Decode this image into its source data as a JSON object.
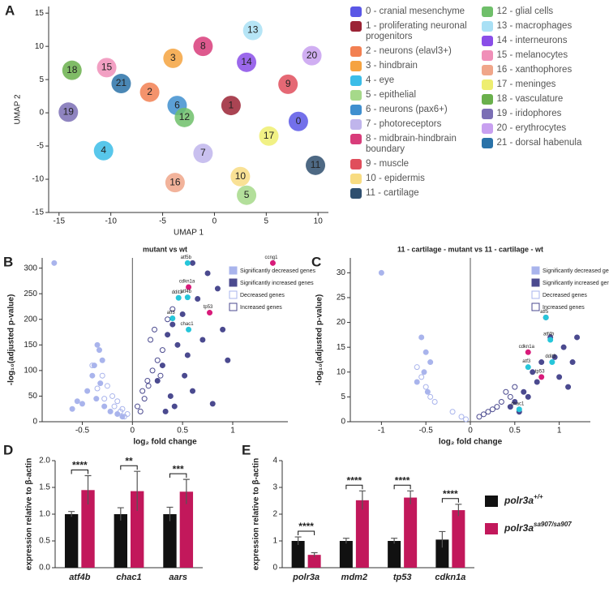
{
  "chart_data": [
    {
      "type": "scatter",
      "panel": "A",
      "xlabel": "UMAP 1",
      "ylabel": "UMAP 2",
      "xlim": [
        -16,
        11
      ],
      "ylim": [
        -15,
        16
      ],
      "xticks": [
        -15,
        -10,
        -5,
        0,
        5,
        10
      ],
      "yticks": [
        -15,
        -10,
        -5,
        0,
        5,
        10,
        15
      ],
      "clusters": [
        {
          "id": "0",
          "name": "0 - cranial mesenchyme",
          "color": "#5a57e6",
          "x": 8.1,
          "y": -1.3
        },
        {
          "id": "1",
          "name": "1 - proliferating neuronal progenitors",
          "color": "#9b2335",
          "x": 1.6,
          "y": 1.1
        },
        {
          "id": "2",
          "name": "2 - neurons (elavl3+)",
          "color": "#f28052",
          "x": -6.25,
          "y": 3.1
        },
        {
          "id": "3",
          "name": "3 - hindbrain",
          "color": "#f5a340",
          "x": -4.0,
          "y": 8.2
        },
        {
          "id": "4",
          "name": "4 - eye",
          "color": "#3bbde8",
          "x": -10.7,
          "y": -5.7
        },
        {
          "id": "5",
          "name": "5 - epithelial",
          "color": "#a6d98a",
          "x": 3.1,
          "y": -12.4
        },
        {
          "id": "6",
          "name": "6 - neurons (pax6+)",
          "color": "#3f8fcf",
          "x": -3.6,
          "y": 1.1
        },
        {
          "id": "7",
          "name": "7 - photoreceptors",
          "color": "#c0b5ec",
          "x": -1.1,
          "y": -6.1
        },
        {
          "id": "8",
          "name": "8 - midbrain-hindbrain boundary",
          "color": "#d83c7a",
          "x": -1.1,
          "y": 10
        },
        {
          "id": "9",
          "name": "9 - muscle",
          "color": "#e04e5c",
          "x": 7.1,
          "y": 4.3
        },
        {
          "id": "10",
          "name": "10 - epidermis",
          "color": "#f8dc82",
          "x": 2.5,
          "y": -9.6
        },
        {
          "id": "11",
          "name": "11 - cartilage",
          "color": "#2f4f6f",
          "x": 9.75,
          "y": -7.9
        },
        {
          "id": "12",
          "name": "12 - glial cells",
          "color": "#6fbf6a",
          "x": -2.9,
          "y": -0.7
        },
        {
          "id": "13",
          "name": "13 - macrophages",
          "color": "#a9e0f5",
          "x": 3.7,
          "y": 12.4
        },
        {
          "id": "14",
          "name": "14 - interneurons",
          "color": "#8a4ee8",
          "x": 3.1,
          "y": 7.6
        },
        {
          "id": "15",
          "name": "15 - melanocytes",
          "color": "#f08fb8",
          "x": -10.4,
          "y": 6.8
        },
        {
          "id": "16",
          "name": "16 - xanthophores",
          "color": "#f0a68a",
          "x": -3.8,
          "y": -10.5
        },
        {
          "id": "17",
          "name": "17 - meninges",
          "color": "#eeee70",
          "x": 5.25,
          "y": -3.5
        },
        {
          "id": "18",
          "name": "18 - vasculature",
          "color": "#6ab04c",
          "x": -13.75,
          "y": 6.4
        },
        {
          "id": "19",
          "name": "19 - iridophores",
          "color": "#7b6fb5",
          "x": -14.1,
          "y": 0.1
        },
        {
          "id": "20",
          "name": "20 - erythrocytes",
          "color": "#c8a0f0",
          "x": 9.4,
          "y": 8.6
        },
        {
          "id": "21",
          "name": "21 - dorsal habenula",
          "color": "#2a72a8",
          "x": -9,
          "y": 4.4
        }
      ]
    },
    {
      "type": "volcano",
      "panel": "B",
      "title": "mutant vs wt",
      "xlabel": "log₂ fold change",
      "ylabel": "-log₁₀(adjusted p-value)",
      "xlim": [
        -0.9,
        1.55
      ],
      "ylim": [
        0,
        320
      ],
      "xticks": [
        -0.5,
        0,
        0.5,
        1
      ],
      "yticks": [
        0,
        50,
        100,
        150,
        200,
        250,
        300
      ],
      "series": [
        {
          "name": "Significantly decreased genes",
          "color": "#a9b4ec",
          "marker": "filled",
          "x": [
            -0.78,
            -0.35,
            -0.33,
            -0.3,
            -0.38,
            -0.55,
            -0.5,
            -0.45,
            -0.28,
            -0.22,
            -0.4,
            -0.6,
            -0.15,
            -0.1,
            -0.32,
            -0.36
          ],
          "y": [
            310,
            150,
            140,
            120,
            110,
            40,
            35,
            60,
            30,
            20,
            90,
            25,
            15,
            10,
            75,
            45
          ]
        },
        {
          "name": "Significantly increased genes",
          "color": "#4b4a8f",
          "marker": "filled",
          "x": [
            0.6,
            0.75,
            0.85,
            0.65,
            0.5,
            0.4,
            0.35,
            0.45,
            0.55,
            0.3,
            0.25,
            0.7,
            0.9,
            0.95,
            0.6,
            0.42,
            0.38,
            0.52,
            0.8,
            0.33
          ],
          "y": [
            310,
            290,
            260,
            240,
            210,
            190,
            170,
            150,
            130,
            110,
            80,
            160,
            180,
            120,
            60,
            30,
            50,
            90,
            35,
            20
          ]
        },
        {
          "name": "Decreased genes",
          "color": "#a9b4ec",
          "marker": "open",
          "x": [
            -0.3,
            -0.25,
            -0.2,
            -0.15,
            -0.1,
            -0.05,
            -0.4,
            -0.35,
            -0.18,
            -0.08,
            -0.28,
            -0.12
          ],
          "y": [
            90,
            70,
            50,
            40,
            25,
            15,
            110,
            65,
            30,
            10,
            45,
            20
          ]
        },
        {
          "name": "Increased genes",
          "color": "#4b4a8f",
          "marker": "open",
          "x": [
            0.1,
            0.15,
            0.2,
            0.25,
            0.3,
            0.05,
            0.12,
            0.18,
            0.22,
            0.28,
            0.35,
            0.4,
            0.08,
            0.16
          ],
          "y": [
            60,
            80,
            100,
            120,
            140,
            30,
            45,
            160,
            180,
            90,
            200,
            220,
            20,
            70
          ]
        }
      ],
      "genes": [
        {
          "label": "ccng1",
          "color": "#d81b7a",
          "x": 1.4,
          "y": 310
        },
        {
          "label": "atf5b",
          "color": "#26c6da",
          "x": 0.55,
          "y": 310
        },
        {
          "label": "cdkn1a",
          "color": "#d81b7a",
          "x": 0.56,
          "y": 263
        },
        {
          "label": "ddit3",
          "color": "#26c6da",
          "x": 0.46,
          "y": 242
        },
        {
          "label": "atf4b",
          "color": "#26c6da",
          "x": 0.55,
          "y": 243
        },
        {
          "label": "tp53",
          "color": "#d81b7a",
          "x": 0.77,
          "y": 213
        },
        {
          "label": "atf3",
          "color": "#26c6da",
          "x": 0.4,
          "y": 202
        },
        {
          "label": "chac1",
          "color": "#26c6da",
          "x": 0.56,
          "y": 180
        }
      ]
    },
    {
      "type": "volcano",
      "panel": "C",
      "title": "11 - cartilage - mutant vs 11 - cartilage - wt",
      "xlabel": "log₂ fold change",
      "ylabel": "-log₁₀(adjusted p-value)",
      "xlim": [
        -1.35,
        1.35
      ],
      "ylim": [
        0,
        33
      ],
      "xticks": [
        -1,
        -0.5,
        0,
        0.5,
        1
      ],
      "yticks": [
        0,
        5,
        10,
        15,
        20,
        25,
        30
      ],
      "series": [
        {
          "name": "Significantly decreased genes",
          "color": "#a9b4ec",
          "marker": "filled",
          "x": [
            -1,
            -0.55,
            -0.5,
            -0.45,
            -0.6,
            -0.52,
            -0.48
          ],
          "y": [
            30,
            17,
            14,
            12,
            8,
            10,
            6
          ]
        },
        {
          "name": "Significantly increased genes",
          "color": "#4b4a8f",
          "marker": "filled",
          "x": [
            0.85,
            0.9,
            0.95,
            1.05,
            1.15,
            1.2,
            0.75,
            0.7,
            0.6,
            0.5,
            0.45,
            0.8,
            1.0,
            1.1,
            0.65,
            0.55
          ],
          "y": [
            21,
            17,
            13,
            15,
            12,
            17,
            8,
            10,
            6,
            4,
            3,
            12,
            9,
            7,
            5,
            2
          ]
        },
        {
          "name": "Decreased genes",
          "color": "#a9b4ec",
          "marker": "open",
          "x": [
            -0.6,
            -0.55,
            -0.5,
            -0.45,
            -0.4,
            -0.2,
            -0.1,
            -0.05
          ],
          "y": [
            11,
            9,
            7,
            5,
            4,
            2,
            1,
            0.5
          ]
        },
        {
          "name": "Increased genes",
          "color": "#4b4a8f",
          "marker": "open",
          "x": [
            0.1,
            0.2,
            0.3,
            0.35,
            0.4,
            0.5,
            0.25,
            0.15,
            0.45
          ],
          "y": [
            1,
            2,
            3,
            4,
            6,
            7,
            2.5,
            1.5,
            5
          ]
        }
      ],
      "genes": [
        {
          "label": "atf5",
          "color": "#26c6da",
          "x": 0.85,
          "y": 21
        },
        {
          "label": "atf4b",
          "color": "#26c6da",
          "x": 0.9,
          "y": 16.5
        },
        {
          "label": "cdkn1a",
          "color": "#d81b7a",
          "x": 0.65,
          "y": 14
        },
        {
          "label": "ddit3",
          "color": "#26c6da",
          "x": 0.92,
          "y": 12
        },
        {
          "label": "atf3",
          "color": "#26c6da",
          "x": 0.65,
          "y": 11
        },
        {
          "label": "tp53",
          "color": "#d81b7a",
          "x": 0.8,
          "y": 9
        },
        {
          "label": "chac1",
          "color": "#26c6da",
          "x": 0.55,
          "y": 2.5
        }
      ]
    },
    {
      "type": "bar",
      "panel": "D",
      "ylabel": "expression relative to β-actin",
      "categories": [
        "atf4b",
        "chac1",
        "aars"
      ],
      "ylim": [
        0,
        2
      ],
      "yticks": [
        {
          "value": 0,
          "label": "0.0"
        },
        {
          "value": 0.5,
          "label": "0.5"
        },
        {
          "value": 1,
          "label": "1.0"
        },
        {
          "value": 1.5,
          "label": "1.5"
        },
        {
          "value": 2,
          "label": "2.0"
        }
      ],
      "series": [
        {
          "color": "#111111",
          "values": [
            1.0,
            1.0,
            1.0
          ],
          "errors": [
            0.05,
            0.12,
            0.13
          ]
        },
        {
          "color": "#c2185b",
          "values": [
            1.45,
            1.43,
            1.42
          ],
          "errors": [
            0.27,
            0.37,
            0.23
          ]
        }
      ],
      "significance": [
        "****",
        "**",
        "***"
      ]
    },
    {
      "type": "bar",
      "panel": "E",
      "ylabel": "expression relative to β-actin",
      "categories": [
        "polr3a",
        "mdm2",
        "tp53",
        "cdkn1a"
      ],
      "ylim": [
        0,
        4
      ],
      "yticks": [
        0,
        1,
        2,
        3,
        4
      ],
      "series": [
        {
          "name": "polr3a",
          "genotype": "+/+",
          "color": "#111111",
          "values": [
            1.0,
            1.0,
            1.0,
            1.05
          ],
          "errors": [
            0.15,
            0.1,
            0.1,
            0.3
          ]
        },
        {
          "name": "polr3a",
          "genotype": "sa907/sa907",
          "color": "#c2185b",
          "values": [
            0.48,
            2.52,
            2.62,
            2.15
          ],
          "errors": [
            0.08,
            0.35,
            0.25,
            0.22
          ]
        }
      ],
      "significance": [
        "****",
        "****",
        "****",
        "****"
      ]
    }
  ]
}
